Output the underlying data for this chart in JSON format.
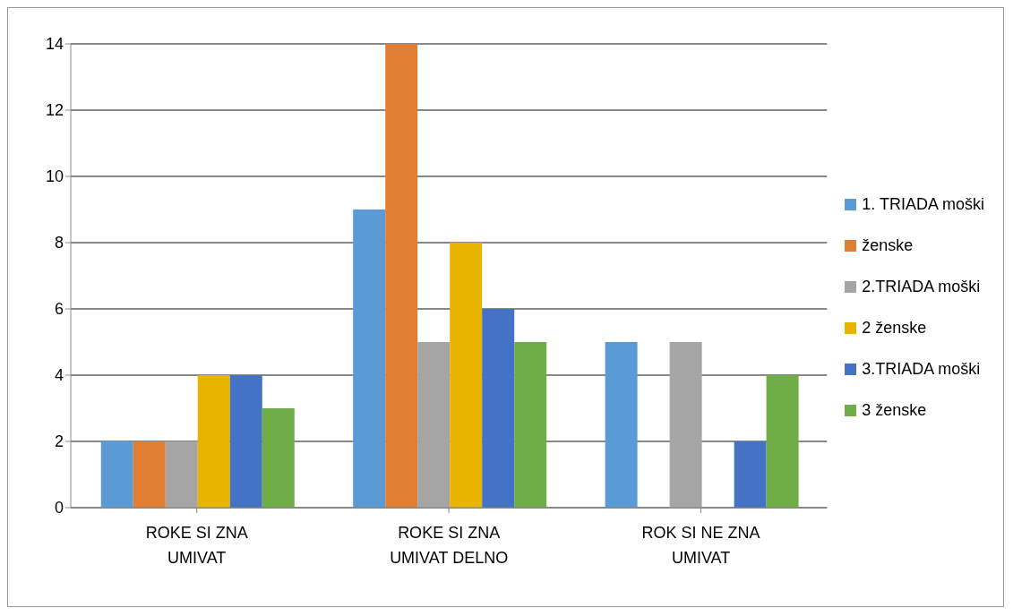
{
  "chart_data": {
    "type": "bar",
    "categories": [
      "ROKE SI ZNA UMIVAT",
      "ROKE SI ZNA UMIVAT DELNO",
      "ROK SI NE ZNA UMIVAT"
    ],
    "series": [
      {
        "name": "1. TRIADA moški",
        "color": "#5b9bd5",
        "values": [
          2,
          9,
          5
        ]
      },
      {
        "name": "ženske",
        "color": "#e07e33",
        "values": [
          2,
          14,
          0
        ]
      },
      {
        "name": "2.TRIADA moški",
        "color": "#a5a5a5",
        "values": [
          2,
          5,
          5
        ]
      },
      {
        "name": "2 ženske",
        "color": "#e8b400",
        "values": [
          4,
          8,
          0
        ]
      },
      {
        "name": "3.TRIADA moški",
        "color": "#4472c4",
        "values": [
          4,
          6,
          2
        ]
      },
      {
        "name": "3 ženske",
        "color": "#70ad47",
        "values": [
          3,
          5,
          4
        ]
      }
    ],
    "ylim": [
      0,
      14
    ],
    "yticks": [
      0,
      2,
      4,
      6,
      8,
      10,
      12,
      14
    ],
    "grid": "y",
    "legend": "right"
  }
}
